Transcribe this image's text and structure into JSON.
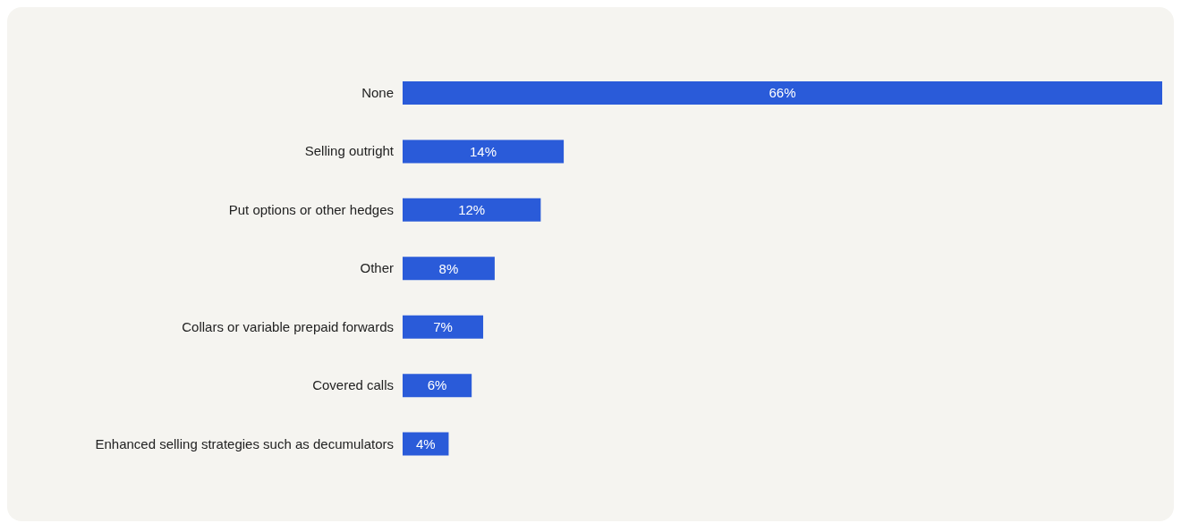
{
  "chart_data": {
    "type": "bar",
    "orientation": "horizontal",
    "categories": [
      "None",
      "Selling outright",
      "Put options or other hedges",
      "Other",
      "Collars or variable prepaid forwards",
      "Covered calls",
      "Enhanced selling strategies such as decumulators"
    ],
    "values": [
      66,
      14,
      12,
      8,
      7,
      6,
      4
    ],
    "value_labels": [
      "66%",
      "14%",
      "12%",
      "8%",
      "7%",
      "6%",
      "4%"
    ],
    "color": "#2a5bd9"
  }
}
